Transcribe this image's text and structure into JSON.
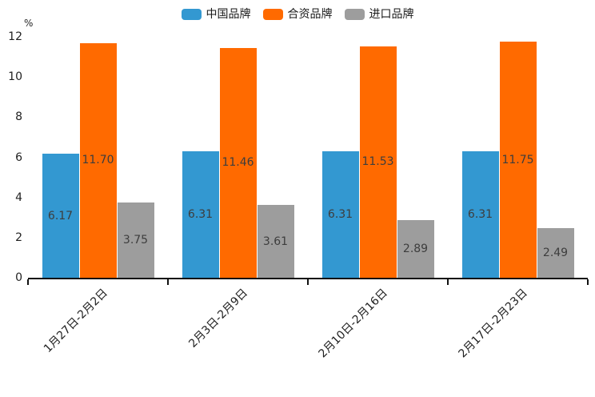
{
  "legend": {
    "items": [
      {
        "label": "中国品牌",
        "color": "#3398D1"
      },
      {
        "label": "合资品牌",
        "color": "#FF6A00"
      },
      {
        "label": "进口品牌",
        "color": "#9D9D9D"
      }
    ]
  },
  "y_axis": {
    "unit_label": "%"
  },
  "chart_data": {
    "type": "bar",
    "title": "",
    "categories": [
      "1月27日-2月2日",
      "2月3日-2月9日",
      "2月10日-2月16日",
      "2月17日-2月23日"
    ],
    "series": [
      {
        "name": "中国品牌",
        "color": "#3398D1",
        "values": [
          6.17,
          6.31,
          6.31,
          6.31
        ]
      },
      {
        "name": "合资品牌",
        "color": "#FF6A00",
        "values": [
          11.7,
          11.46,
          11.53,
          11.75
        ]
      },
      {
        "name": "进口品牌",
        "color": "#9D9D9D",
        "values": [
          3.75,
          3.61,
          2.89,
          2.49
        ]
      }
    ],
    "value_label_decimals": 2,
    "xlabel": "",
    "ylabel": "%",
    "ylim": [
      0,
      12
    ],
    "yticks": [
      0,
      2,
      4,
      6,
      8,
      10,
      12
    ],
    "grid": false,
    "legend_position": "top",
    "x_tick_rotation_deg": 45
  }
}
